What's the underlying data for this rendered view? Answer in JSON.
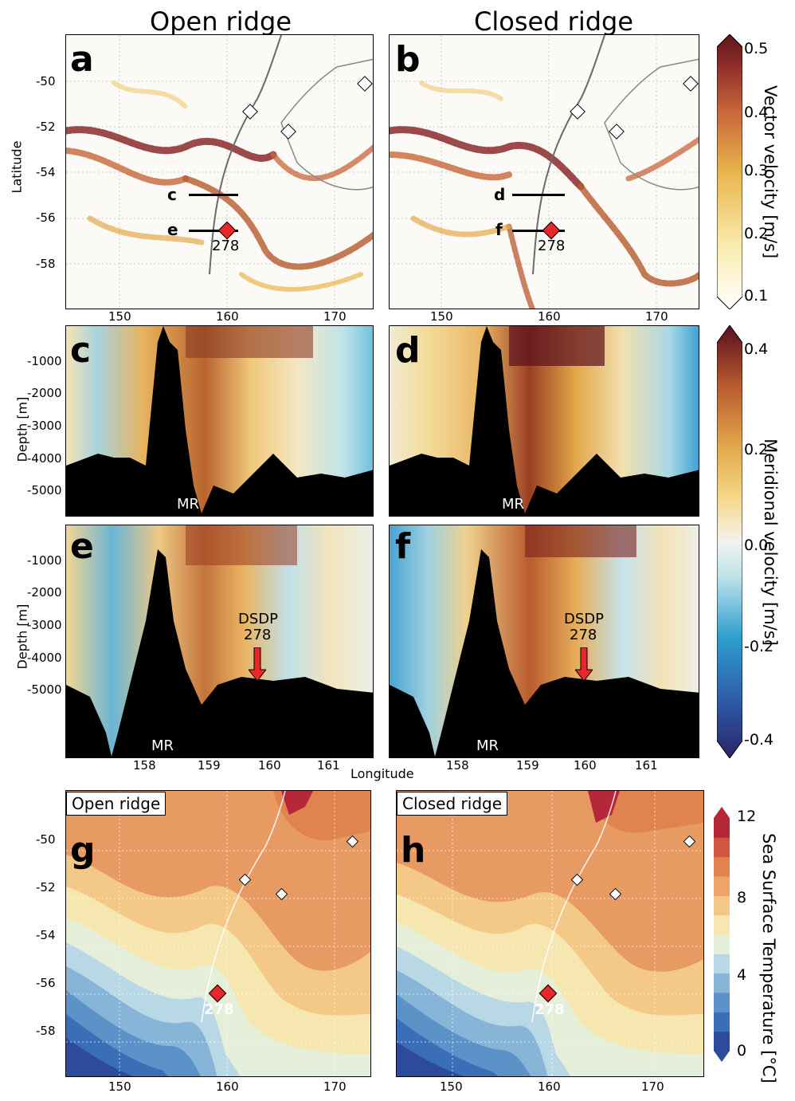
{
  "column_titles": {
    "left": "Open ridge",
    "right": "Closed ridge"
  },
  "panels": {
    "a": "a",
    "b": "b",
    "c": "c",
    "d": "d",
    "e": "e",
    "f": "f",
    "g": "g",
    "h": "h"
  },
  "axes": {
    "latitude_label": "Latitude",
    "depth_label": "Depth [m]",
    "longitude_label": "Longitude",
    "map_lat_ticks": [
      "-50",
      "-52",
      "-54",
      "-56",
      "-58"
    ],
    "map_lon_ticks": [
      "150",
      "160",
      "170"
    ],
    "depth_ticks": [
      "-1000",
      "-2000",
      "-3000",
      "-4000",
      "-5000"
    ],
    "section_lon_ticks": [
      "158",
      "159",
      "160",
      "161"
    ]
  },
  "colorbars": {
    "vector": {
      "title": "Vector velocity [m/s]",
      "ticks": [
        "0.5",
        "0.4",
        "0.3",
        "0.2",
        "0.1"
      ],
      "min": 0.1,
      "max": 0.5,
      "colors": [
        "#ffffff",
        "#f8e9a6",
        "#e9b44c",
        "#c8663a",
        "#8b2a2a",
        "#5c1717"
      ]
    },
    "meridional": {
      "title": "Meridional velocity [m/s]",
      "ticks": [
        "0.4",
        "0.2",
        "0.0",
        "-0.2",
        "-0.4"
      ],
      "min": -0.4,
      "max": 0.4,
      "colors": [
        "#2a2466",
        "#2d56a3",
        "#2f9fcf",
        "#bfe3ea",
        "#f3f3ee",
        "#f5d889",
        "#e3a84a",
        "#b85a2e",
        "#5a0f1f"
      ]
    },
    "sst": {
      "title": "Sea Surface Temperature [°C]",
      "ticks": [
        "12",
        "8",
        "4",
        "0"
      ],
      "min": 0,
      "max": 12,
      "colors": [
        "#2e4a9a",
        "#3a6fb8",
        "#5b93c8",
        "#86b5d8",
        "#b9d8e6",
        "#e4eed8",
        "#f6e7b0",
        "#f4c987",
        "#eda36a",
        "#e0834f",
        "#d1553f",
        "#b5283a"
      ]
    }
  },
  "map_annotations": {
    "section_labels": {
      "a_upper": "c",
      "a_lower": "e",
      "b_upper": "d",
      "b_lower": "f"
    },
    "site_label": "278"
  },
  "section_annotations": {
    "ridge": "MR",
    "dsdp_line1": "DSDP",
    "dsdp_line2": "278"
  },
  "sst_box": {
    "left": "Open ridge",
    "right": "Closed ridge"
  },
  "chart_data": [
    {
      "panel": "a",
      "type": "heatmap",
      "quantity": "Vector velocity [m/s]",
      "xlabel": "",
      "ylabel": "Latitude",
      "xlim": [
        145,
        175
      ],
      "ylim": [
        -60,
        -48
      ],
      "x_ticks": [
        150,
        160,
        170
      ],
      "y_ticks": [
        -50,
        -52,
        -54,
        -56,
        -58
      ],
      "sections": [
        {
          "label": "c",
          "lat": -55,
          "lon": [
            156,
            161.5
          ]
        },
        {
          "label": "e",
          "lat": -56.6,
          "lon": [
            157,
            161.5
          ]
        }
      ],
      "site": {
        "label": "278",
        "lon": 160,
        "lat": -56.6
      }
    },
    {
      "panel": "b",
      "type": "heatmap",
      "quantity": "Vector velocity [m/s]",
      "xlim": [
        145,
        175
      ],
      "ylim": [
        -60,
        -48
      ],
      "sections": [
        {
          "label": "d",
          "lat": -55,
          "lon": [
            156,
            161.5
          ]
        },
        {
          "label": "f",
          "lat": -56.6,
          "lon": [
            157,
            161.5
          ]
        }
      ],
      "site": {
        "label": "278",
        "lon": 160,
        "lat": -56.6
      }
    },
    {
      "panel": "c",
      "type": "heatmap",
      "quantity": "Meridional velocity [m/s]",
      "ylabel": "Depth [m]",
      "xlim": [
        157.1,
        162
      ],
      "ylim": [
        -6000,
        0
      ]
    },
    {
      "panel": "d",
      "type": "heatmap",
      "quantity": "Meridional velocity [m/s]",
      "xlim": [
        157.1,
        162
      ],
      "ylim": [
        -6000,
        0
      ]
    },
    {
      "panel": "e",
      "type": "heatmap",
      "quantity": "Meridional velocity [m/s]",
      "ylabel": "Depth [m]",
      "xlabel": "Longitude",
      "xlim": [
        157.1,
        162
      ],
      "ylim": [
        -6000,
        0
      ],
      "x_ticks": [
        158,
        159,
        160,
        161
      ],
      "marker": {
        "label": "DSDP 278",
        "lon": 160.05,
        "depth": -3700
      }
    },
    {
      "panel": "f",
      "type": "heatmap",
      "quantity": "Meridional velocity [m/s]",
      "xlim": [
        157.1,
        162
      ],
      "ylim": [
        -6000,
        0
      ],
      "x_ticks": [
        158,
        159,
        160,
        161
      ],
      "marker": {
        "label": "DSDP 278",
        "lon": 160.05,
        "depth": -3700
      }
    },
    {
      "panel": "g",
      "type": "heatmap",
      "quantity": "Sea Surface Temperature [°C]",
      "title": "Open ridge",
      "xlim": [
        145,
        175
      ],
      "ylim": [
        -60,
        -48
      ],
      "site": {
        "label": "278",
        "lon": 160,
        "lat": -56.5
      }
    },
    {
      "panel": "h",
      "type": "heatmap",
      "quantity": "Sea Surface Temperature [°C]",
      "title": "Closed ridge",
      "xlim": [
        145,
        175
      ],
      "ylim": [
        -60,
        -48
      ],
      "site": {
        "label": "278",
        "lon": 160,
        "lat": -56.5
      }
    }
  ]
}
